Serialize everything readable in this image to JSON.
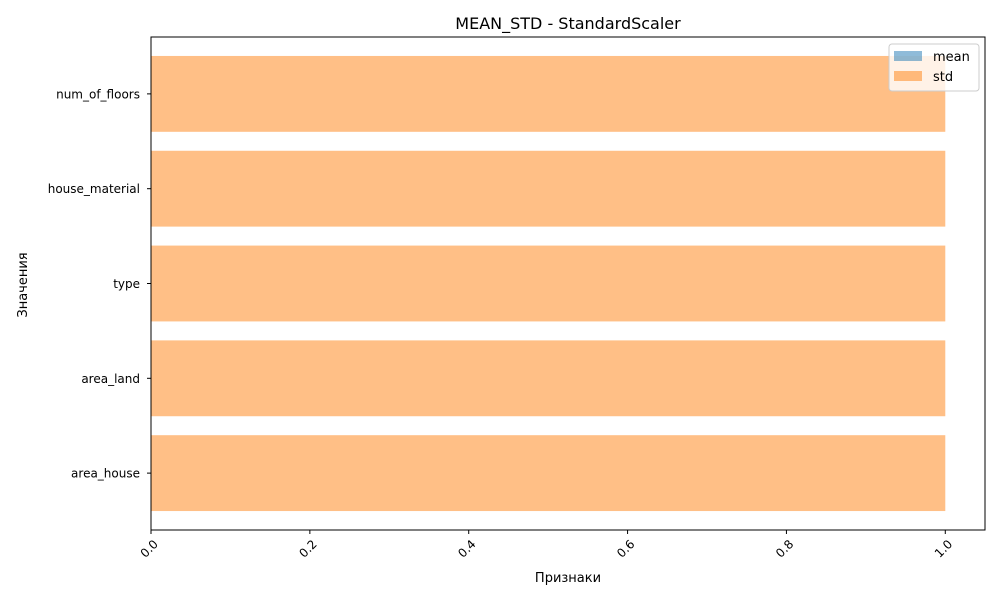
{
  "chart_data": {
    "type": "bar",
    "orientation": "horizontal",
    "title": "MEAN_STD - StandardScaler",
    "xlabel": "Признаки",
    "ylabel": "Значения",
    "categories": [
      "area_house",
      "area_land",
      "type",
      "house_material",
      "num_of_floors"
    ],
    "series": [
      {
        "name": "mean",
        "values": [
          0.0,
          0.0,
          0.0,
          0.0,
          0.0
        ],
        "color": "#1f77b4",
        "opacity": 0.5
      },
      {
        "name": "std",
        "values": [
          1.0,
          1.0,
          1.0,
          1.0,
          1.0
        ],
        "color": "#ff7f0e",
        "opacity": 0.5
      }
    ],
    "xlim": [
      0.0,
      1.05
    ],
    "xticks": [
      "0.0",
      "0.2",
      "0.4",
      "0.6",
      "0.8",
      "1.0"
    ],
    "xtick_values": [
      0.0,
      0.2,
      0.4,
      0.6,
      0.8,
      1.0
    ],
    "xtick_rotation": 45,
    "grid": false,
    "legend_position": "top-right"
  }
}
